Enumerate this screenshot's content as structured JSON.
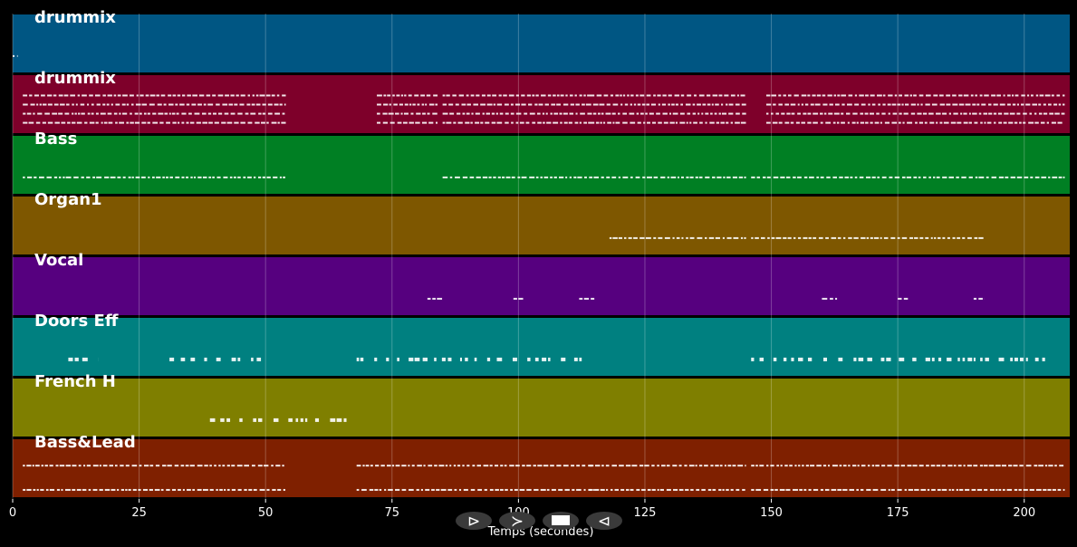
{
  "chart_data": {
    "type": "piano-roll",
    "xlabel": "Temps (secondes)",
    "xlim": [
      0,
      209
    ],
    "x_ticks": [
      0,
      25,
      50,
      75,
      100,
      125,
      150,
      175,
      200
    ],
    "grid": true,
    "tracks": [
      {
        "name": "drummix",
        "color": "#005683",
        "segments": [
          [
            0,
            1
          ]
        ]
      },
      {
        "name": "drummix",
        "color": "#7e002a",
        "segments": [
          [
            2,
            54
          ],
          [
            72,
            84
          ],
          [
            85,
            114
          ],
          [
            114,
            145
          ],
          [
            149,
            208
          ]
        ]
      },
      {
        "name": "Bass",
        "color": "#007f23",
        "segments": [
          [
            2,
            54
          ],
          [
            85,
            145
          ],
          [
            146,
            208
          ]
        ]
      },
      {
        "name": "Organ1",
        "color": "#7e5700",
        "segments": [
          [
            118,
            145
          ],
          [
            146,
            192
          ]
        ]
      },
      {
        "name": "Vocal",
        "color": "#56007f",
        "segments": [
          [
            82,
            85
          ],
          [
            99,
            101
          ],
          [
            112,
            115
          ],
          [
            160,
            163
          ],
          [
            175,
            177
          ],
          [
            190,
            192
          ]
        ]
      },
      {
        "name": "Doors Eff",
        "color": "#008080",
        "segments": [
          [
            11,
            17
          ],
          [
            31,
            51
          ],
          [
            68,
            114
          ],
          [
            146,
            205
          ]
        ]
      },
      {
        "name": "French H",
        "color": "#7f7f00",
        "segments": [
          [
            39,
            66
          ]
        ]
      },
      {
        "name": "Bass&Lead",
        "color": "#7f2000",
        "segments": [
          [
            2,
            54
          ],
          [
            68,
            115
          ],
          [
            114,
            145
          ],
          [
            146,
            192
          ],
          [
            192,
            208
          ]
        ]
      }
    ]
  },
  "controls": {
    "play_glyph": "⊳",
    "forward_glyph": "≻",
    "stop_glyph": "■",
    "back_glyph": "⊲",
    "play_icon": "play-icon",
    "forward_icon": "fast-forward-icon",
    "stop_icon": "stop-icon",
    "back_icon": "rewind-icon"
  }
}
